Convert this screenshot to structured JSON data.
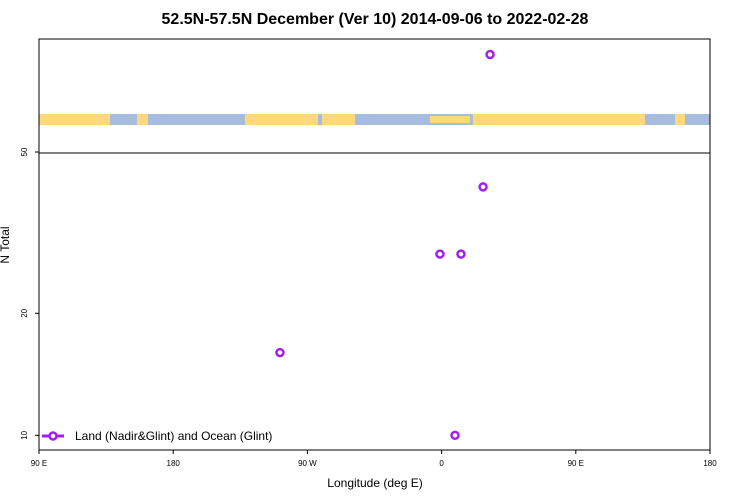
{
  "chart_data": {
    "type": "scatter",
    "title": "52.5N-57.5N December (Ver 10)   2014-09-06 to 2022-02-28",
    "x_label": "Longitude (deg E)",
    "y_label": "N Total",
    "log_y": true,
    "xlim": [
      90,
      540
    ],
    "ylim": [
      9.2,
      95
    ],
    "xticks": [
      {
        "value": 90,
        "label": "90 E"
      },
      180,
      {
        "value": 270,
        "label": "90 W"
      },
      {
        "value": 360,
        "label": "0"
      },
      {
        "value": 450,
        "label": "90 E"
      },
      {
        "value": 540,
        "label": "180"
      }
    ],
    "yticks": [
      10,
      20,
      50
    ],
    "series": [
      {
        "name": "Land (Nadir&Glint) and Ocean (Glint)",
        "color": "#a020f0",
        "x": [
          392.5,
          387.8,
          358.9,
          373,
          251.6,
          369
        ],
        "values": [
          87,
          41,
          28,
          28,
          16,
          10
        ]
      }
    ]
  }
}
